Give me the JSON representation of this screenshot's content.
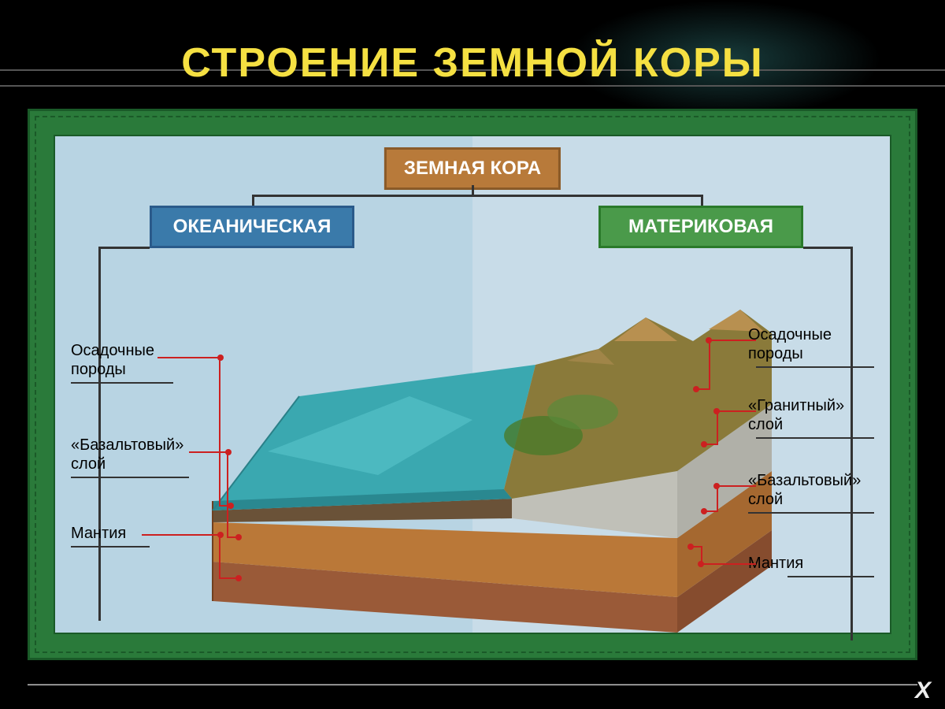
{
  "title": "СТРОЕНИЕ ЗЕМНОЙ КОРЫ",
  "title_color": "#f5e042",
  "title_fontsize": 52,
  "background_color": "#000000",
  "panel_bg": "#2a7a3a",
  "sky_left_color": "#b8d4e3",
  "sky_right_color": "#c8dce8",
  "boxes": {
    "crust": {
      "label": "ЗЕМНАЯ КОРА",
      "bg": "#b87a3a",
      "border": "#8a5a28"
    },
    "oceanic": {
      "label": "ОКЕАНИЧЕСКАЯ",
      "bg": "#3a7aaa",
      "border": "#2a5a8a"
    },
    "continental": {
      "label": "МАТЕРИКОВАЯ",
      "bg": "#4a9a4a",
      "border": "#2a7a2a"
    }
  },
  "left_labels": {
    "sedimentary": "Осадочные\nпороды",
    "basalt": "«Базальтовый»\nслой",
    "mantle": "Мантия"
  },
  "right_labels": {
    "sedimentary": "Осадочные\nпороды",
    "granite": "«Гранитный»\nслой",
    "basalt": "«Базальтовый»\nслой",
    "mantle": "Мантия"
  },
  "diagram": {
    "type": "cross-section-3d",
    "layers": {
      "water": "#3aa8b0",
      "water_highlight": "#58c5cc",
      "sediment_thin": "#6a5238",
      "granite": "#c0c0b8",
      "basalt": "#ba7838",
      "basalt_shade": "#a56830",
      "mantle": "#9a5a38",
      "mantle_shade": "#864c2e",
      "mountain_top": "#b89050",
      "mountain_mid": "#8a7a3a",
      "vegetation": "#4a7a2a"
    },
    "pointer_color": "#cc2020",
    "connector_color": "#333333"
  },
  "close_icon": "X"
}
